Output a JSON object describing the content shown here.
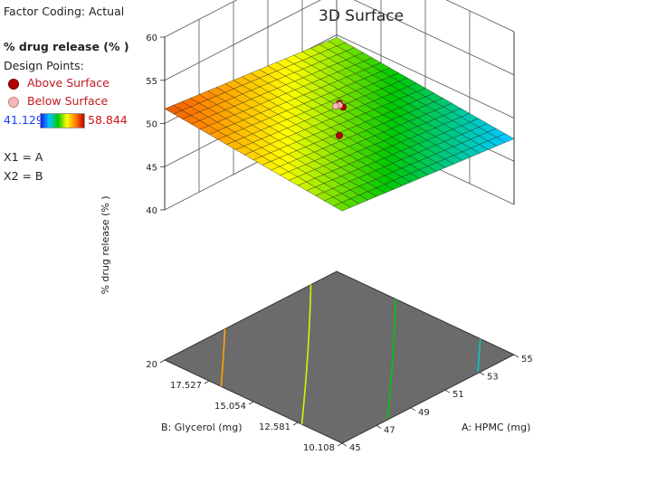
{
  "panel": {
    "factor_coding": "Factor Coding: Actual",
    "response": "% drug release (% )",
    "design_points_label": "Design Points:",
    "above_label": "Above Surface",
    "below_label": "Below Surface",
    "range_min": "41.129",
    "range_max": "58.844",
    "x1_map": "X1 = A",
    "x2_map": "X2 = B"
  },
  "colors": {
    "above": "#b30000",
    "below": "#f5b7b7",
    "range_min": "#1a3cff",
    "range_max": "#d21414",
    "floor": "#6b6b6b"
  },
  "chart_data": {
    "type": "surface",
    "title": "3D Surface",
    "zlabel": "% drug release (% )",
    "axes": {
      "A": {
        "label": "A: HPMC (mg)",
        "range": [
          45,
          55
        ],
        "ticks": [
          "45",
          "47",
          "49",
          "51",
          "53",
          "55"
        ]
      },
      "B": {
        "label": "B: Glycerol (mg)",
        "range": [
          10.108,
          20
        ],
        "ticks": [
          "10.108",
          "12.581",
          "15.054",
          "17.527",
          "20"
        ]
      },
      "Z": {
        "range": [
          40,
          60
        ],
        "ticks": [
          "40",
          "45",
          "50",
          "55",
          "60"
        ]
      }
    },
    "surface_corners": {
      "A45_B10.108": 49.5,
      "A55_B10.108": 47.6,
      "A45_B20": 51.7,
      "A55_B20": 49.7
    },
    "color_range": [
      41.129,
      58.844
    ],
    "contour_levels": [
      48,
      49,
      50,
      51
    ],
    "design_points": [
      {
        "type": "above",
        "A": 50,
        "B": 15.054,
        "z": 52.0
      },
      {
        "type": "above",
        "A": 50,
        "B": 15.054,
        "z": 51.6
      },
      {
        "type": "below",
        "A": 50,
        "B": 15.054,
        "z": 51.8
      },
      {
        "type": "below",
        "A": 50,
        "B": 15.054,
        "z": 51.7
      },
      {
        "type": "above",
        "A": 50,
        "B": 15.054,
        "z": 48.3
      }
    ]
  }
}
